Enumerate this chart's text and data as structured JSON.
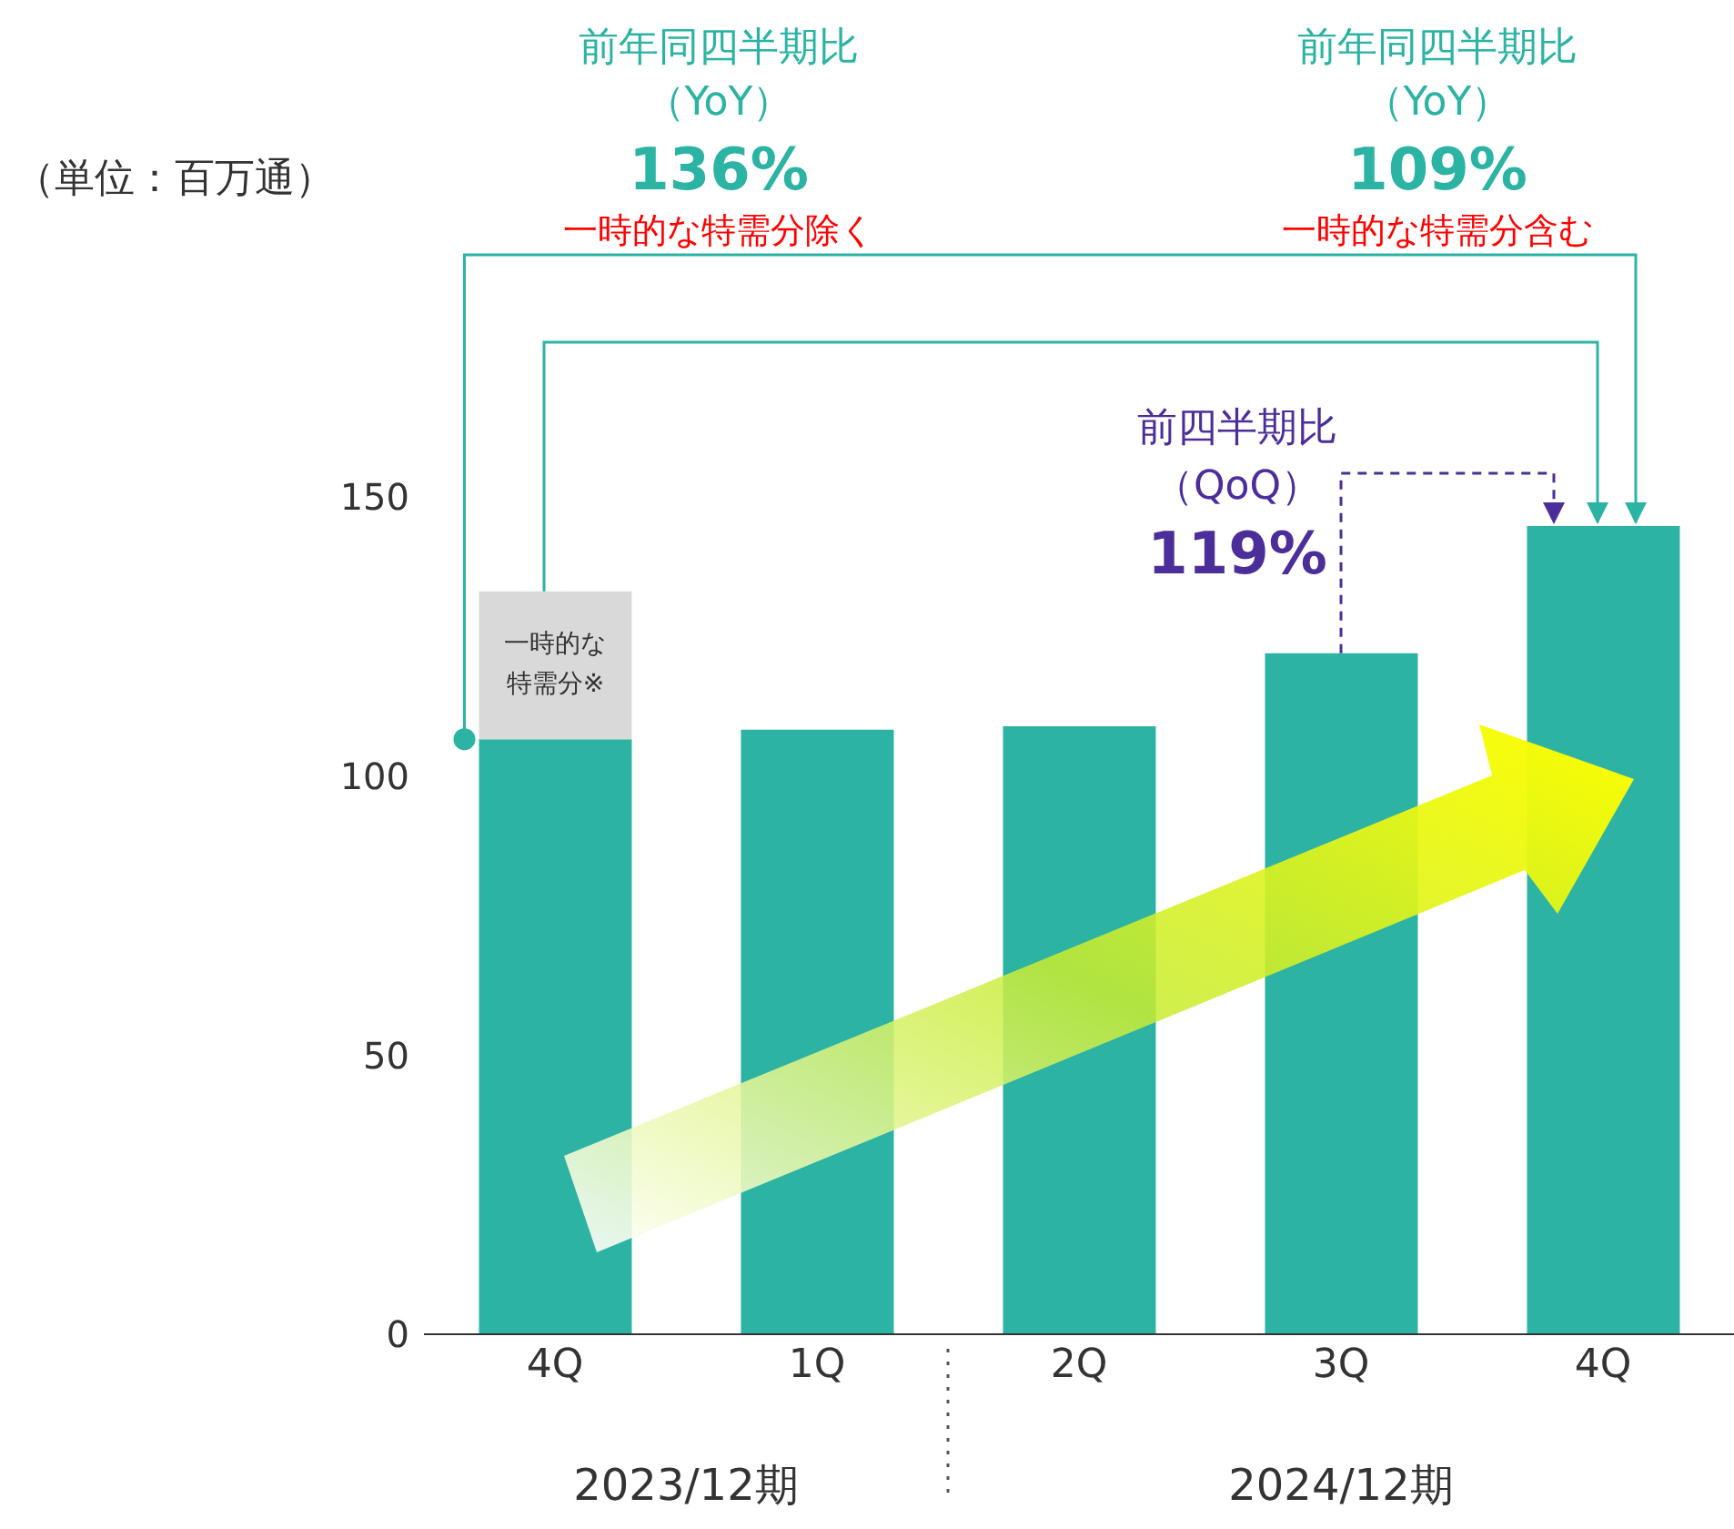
{
  "chart_data": {
    "type": "bar",
    "categories": [
      "4Q",
      "1Q",
      "2Q",
      "3Q",
      "4Q"
    ],
    "stacked": true,
    "series": [
      {
        "color": "#2db3a3",
        "values": [
          106.6,
          108.3,
          108.9,
          122,
          144.8
        ]
      },
      {
        "name": "一時的な特需分※",
        "color": "#d9d9d9",
        "values": [
          26.5,
          null,
          null,
          null,
          null
        ]
      }
    ],
    "ylim": [
      0,
      150
    ],
    "yticks": [
      0,
      50,
      100,
      150
    ],
    "grid": false,
    "legend": false,
    "annotations": [
      "前年同四半期比",
      "（YoY）",
      "136%",
      "一時的な特需分除く",
      "前年同四半期比",
      "（YoY）",
      "109%",
      "一時的な特需分含む",
      "前四半期比",
      "（QoQ）",
      "119%",
      "2023/12期",
      "2024/12期",
      "（単位：百万通）"
    ]
  }
}
